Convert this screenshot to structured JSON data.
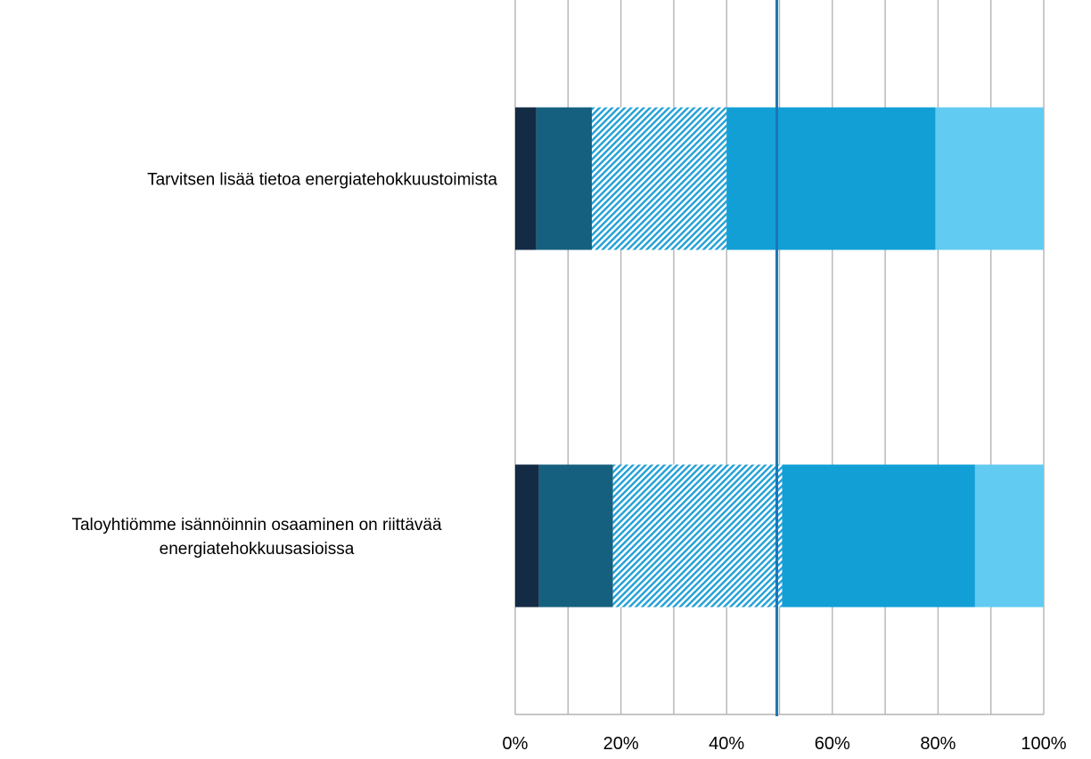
{
  "chart_data": {
    "type": "bar",
    "orientation": "horizontal",
    "stacked": "percent",
    "title": "",
    "xlabel": "",
    "ylabel": "",
    "xlim": [
      0,
      100
    ],
    "x_ticks": [
      "0%",
      "20%",
      "40%",
      "60%",
      "80%",
      "100%"
    ],
    "grid": true,
    "legend": "none",
    "reference_line": {
      "value": 49.5,
      "color": "#1b75b7"
    },
    "categories": [
      {
        "label_lines": [
          "Tarvitsen lisää tietoa energiatehokkuustoimista"
        ]
      },
      {
        "label_lines": [
          "Taloyhtiömme isännöinnin osaaminen on riittävää",
          "energiatehokkuusasioissa"
        ]
      }
    ],
    "series": [
      {
        "color": "#132b45",
        "pattern": "solid",
        "values": [
          4,
          4.5
        ]
      },
      {
        "color": "#16607f",
        "pattern": "solid",
        "values": [
          10.5,
          14
        ]
      },
      {
        "color": "#21a0d6",
        "pattern": "hatched",
        "values": [
          25.5,
          32
        ]
      },
      {
        "color": "#119fd6",
        "pattern": "solid",
        "values": [
          39.5,
          36.5
        ]
      },
      {
        "color": "#62cbf1",
        "pattern": "solid",
        "values": [
          20.5,
          13
        ]
      }
    ]
  }
}
